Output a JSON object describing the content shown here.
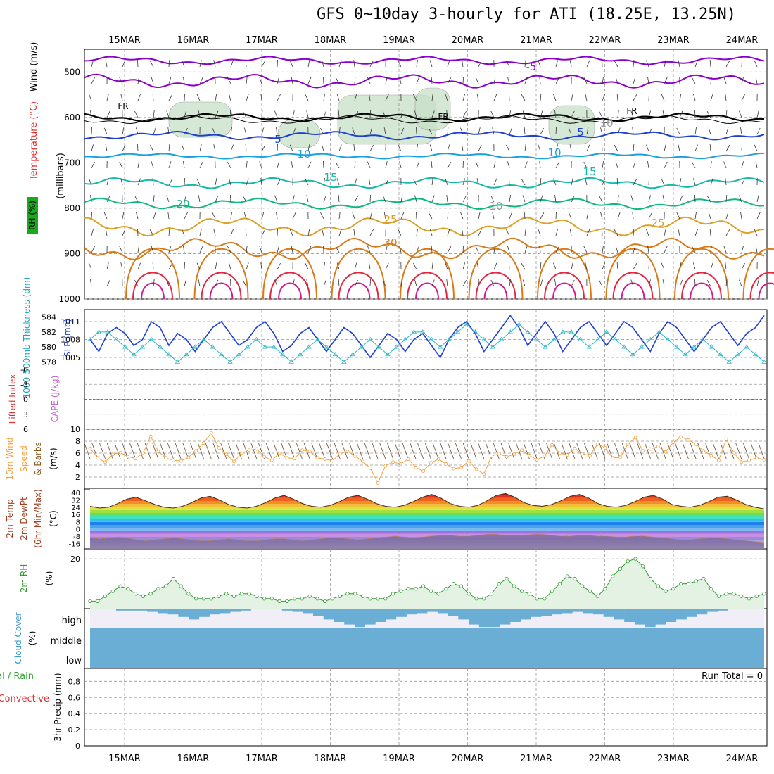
{
  "title": "GFS 0~10day 3-hourly for ATI (18.25E, 13.25N)",
  "dates": [
    "15MAR",
    "16MAR",
    "17MAR",
    "18MAR",
    "19MAR",
    "20MAR",
    "21MAR",
    "22MAR",
    "23MAR",
    "24MAR"
  ],
  "colors": {
    "grid": "#999999",
    "purple": "#8a00c8",
    "blue": "#1f3fd0",
    "lightblue": "#1aa0e0",
    "teal": "#18b8a8",
    "green": "#10b880",
    "gold": "#dba028",
    "orange": "#d87a18",
    "red": "#e02840",
    "magenta": "#d01a90",
    "rh_fill": "#c8e0c8",
    "slp": "#1f3fd0",
    "thick": "#2ab8c8",
    "wind10": "#f0a040",
    "rh2m": "#339933",
    "cloud": "#6aaed6",
    "cloud_bg": "#f2eef8"
  },
  "panels": {
    "upper": {
      "ylabel_parts": [
        "RH (%)",
        "Temperature (°C)",
        "Wind (m/s)"
      ],
      "ylabel_units": "(millibars)",
      "yticks": [
        "500",
        "600",
        "700",
        "800",
        "900",
        "1000"
      ],
      "contour_labels": [
        "-5",
        "FR",
        "FR",
        "FR",
        "5",
        "5",
        "10",
        "10",
        "10",
        "15",
        "15",
        "20",
        "25",
        "25",
        "30",
        "10"
      ]
    },
    "slp": {
      "ylabel_left": "1000-500mb Thickness (dm)",
      "ylabel_right": "SLP (mb)",
      "left_ticks": [
        "584",
        "582",
        "580",
        "578"
      ],
      "right_ticks": [
        "1011",
        "1008",
        "1005"
      ]
    },
    "cape": {
      "ylabel_left": "Lifted Index",
      "ylabel_right": "CAPE (J/kg)",
      "left_ticks": [
        "-6",
        "-3",
        "0",
        "3",
        "6"
      ]
    },
    "wind10": {
      "ylabel": [
        "10m Wind",
        "Speed",
        "& Barbs",
        "(m/s)"
      ],
      "yticks": [
        "10",
        "8",
        "6",
        "4",
        "2"
      ]
    },
    "temp2m": {
      "ylabel": [
        "2m Temp",
        "2m DewPt",
        "(6hr Min/Max)",
        "(°C)"
      ],
      "yticks": [
        "40",
        "32",
        "24",
        "16",
        "8",
        "0",
        "-8",
        "-16"
      ]
    },
    "rh2m": {
      "ylabel": [
        "2m RH",
        "(%)"
      ],
      "yticks": [
        "20"
      ]
    },
    "cloud": {
      "ylabel": [
        "Cloud Cover",
        "(%)"
      ],
      "levels": [
        "high",
        "middle",
        "low"
      ]
    },
    "precip": {
      "ylabel": [
        "Total / Rain",
        "Convective",
        "3hr Precip (mm)"
      ],
      "yticks": [
        "0.8",
        "0.6",
        "0.4",
        "0.2",
        "0"
      ],
      "run_total": "Run Total = 0"
    }
  },
  "chart_data": [
    {
      "type": "line",
      "title": "1000-500mb Thickness (dm) / SLP (mb)",
      "series": [
        {
          "name": "SLP (mb)",
          "values": [
            1008,
            1006,
            1009,
            1010,
            1009,
            1007,
            1008,
            1011,
            1010,
            1007,
            1009,
            1008,
            1006,
            1008,
            1010,
            1011,
            1009,
            1007,
            1008,
            1010,
            1011,
            1009,
            1006,
            1007,
            1009,
            1010,
            1008,
            1006,
            1008,
            1010,
            1009,
            1007,
            1005,
            1007,
            1009,
            1008,
            1006,
            1008,
            1009,
            1007,
            1005,
            1008,
            1010,
            1011,
            1009,
            1006,
            1008,
            1010,
            1012,
            1010,
            1007,
            1009,
            1011,
            1009,
            1006,
            1008,
            1010,
            1011,
            1009,
            1007,
            1009,
            1011,
            1010,
            1008,
            1006,
            1009,
            1011,
            1010,
            1008,
            1006,
            1008,
            1010,
            1011,
            1009,
            1007,
            1009,
            1010,
            1012
          ]
        },
        {
          "name": "1000-500mb Thickness (dm)",
          "values": [
            581,
            582,
            582,
            581,
            580,
            579,
            580,
            581,
            580,
            579,
            578,
            579,
            580,
            581,
            580,
            579,
            578,
            579,
            580,
            581,
            580,
            580,
            579,
            578,
            579,
            580,
            581,
            580,
            579,
            578,
            579,
            580,
            581,
            580,
            579,
            580,
            581,
            582,
            582,
            581,
            580,
            581,
            582,
            583,
            582,
            581,
            580,
            581,
            582,
            583,
            582,
            581,
            580,
            581,
            582,
            582,
            581,
            580,
            581,
            582,
            581,
            580,
            579,
            580,
            581,
            582,
            581,
            580,
            579,
            580,
            581,
            580,
            579,
            578,
            579,
            580,
            579,
            578
          ]
        }
      ],
      "left_ylim": [
        577,
        585
      ],
      "right_ylim": [
        1003,
        1013
      ]
    },
    {
      "type": "line",
      "title": "10m Wind Speed & Barbs (m/s)",
      "series": [
        {
          "name": "10m Wind Speed",
          "values": [
            6.8,
            5.2,
            4.5,
            5.8,
            6.1,
            5.4,
            5.1,
            6.0,
            8.8,
            6.3,
            5.2,
            4.8,
            4.7,
            5.3,
            6.4,
            7.7,
            9.4,
            6.9,
            5.8,
            4.6,
            6.0,
            6.5,
            6.7,
            5.4,
            4.8,
            6.0,
            5.2,
            5.1,
            6.5,
            6.3,
            5.2,
            5.0,
            4.7,
            5.9,
            6.3,
            5.5,
            4.6,
            3.5,
            1.0,
            3.9,
            4.5,
            4.2,
            5.0,
            3.6,
            3.0,
            4.4,
            5.0,
            4.2,
            3.4,
            3.6,
            4.7,
            3.3,
            2.5,
            5.5,
            5.9,
            5.4,
            5.8,
            6.5,
            5.6,
            4.9,
            5.5,
            7.4,
            6.0,
            5.7,
            6.8,
            5.9,
            5.6,
            7.5,
            6.9,
            5.2,
            5.3,
            7.5,
            8.6,
            6.4,
            6.7,
            7.1,
            6.2,
            7.8,
            8.7,
            8.2,
            7.5,
            6.4,
            5.6,
            4.8,
            8.3,
            6.1,
            4.5,
            4.8,
            5.2,
            4.9
          ]
        }
      ],
      "ylim": [
        0,
        10
      ]
    },
    {
      "type": "area",
      "title": "2m Temp / 2m DewPt (°C)",
      "series": [
        {
          "name": "2m Temp",
          "values": [
            25,
            23,
            24,
            28,
            33,
            35,
            31,
            27,
            24,
            23,
            25,
            29,
            34,
            36,
            32,
            27,
            24,
            23,
            25,
            29,
            34,
            37,
            33,
            28,
            25,
            24,
            26,
            30,
            35,
            37,
            33,
            28,
            25,
            24,
            26,
            30,
            35,
            38,
            34,
            28,
            25,
            24,
            26,
            31,
            37,
            39,
            35,
            29,
            26,
            25,
            27,
            31,
            36,
            38,
            34,
            28,
            25,
            24,
            26,
            30,
            35,
            37,
            33,
            27,
            25,
            24,
            26,
            30,
            35,
            36,
            32,
            27,
            24,
            22
          ]
        },
        {
          "name": "2m DewPt",
          "values": [
            -10,
            -11,
            -10,
            -9,
            -10,
            -12,
            -13,
            -12,
            -11,
            -10,
            -11,
            -12,
            -13,
            -13,
            -12,
            -11,
            -12,
            -13,
            -13,
            -12,
            -11,
            -11,
            -12,
            -13,
            -12,
            -11,
            -10,
            -10,
            -11,
            -12,
            -11,
            -10,
            -9,
            -8,
            -9,
            -10,
            -9,
            -8,
            -7,
            -7,
            -8,
            -8,
            -7,
            -6,
            -6,
            -7,
            -7,
            -7,
            -6,
            -6,
            -7,
            -8,
            -8,
            -7,
            -7,
            -8,
            -8,
            -9,
            -9,
            -8,
            -8,
            -9,
            -10,
            -11,
            -12,
            -12,
            -11,
            -10,
            -10,
            -11,
            -12,
            -13,
            -14,
            -15
          ]
        }
      ],
      "ylim": [
        -22,
        44
      ]
    },
    {
      "type": "area",
      "title": "2m RH (%)",
      "series": [
        {
          "name": "2m RH",
          "values": [
            3,
            3,
            5,
            7,
            9,
            8,
            6,
            5,
            6,
            8,
            9,
            12,
            9,
            6,
            4,
            4,
            4,
            5,
            6,
            5,
            6,
            6,
            5,
            4,
            4,
            3,
            3,
            4,
            4,
            5,
            4,
            3,
            4,
            5,
            6,
            6,
            5,
            4,
            4,
            4,
            6,
            7,
            8,
            8,
            9,
            7,
            6,
            8,
            10,
            9,
            6,
            4,
            4,
            6,
            10,
            12,
            9,
            7,
            6,
            4,
            4,
            7,
            10,
            13,
            12,
            9,
            7,
            5,
            8,
            13,
            16,
            19,
            20,
            17,
            12,
            9,
            7,
            8,
            10,
            10,
            11,
            12,
            8,
            5,
            6,
            6,
            5,
            4,
            5,
            6
          ]
        }
      ],
      "ylim": [
        0,
        24
      ]
    },
    {
      "type": "bar",
      "title": "3hr Precip (mm)",
      "series": [
        {
          "name": "Total / Rain",
          "values": [
            0
          ]
        }
      ],
      "ylim": [
        0,
        1
      ]
    }
  ]
}
